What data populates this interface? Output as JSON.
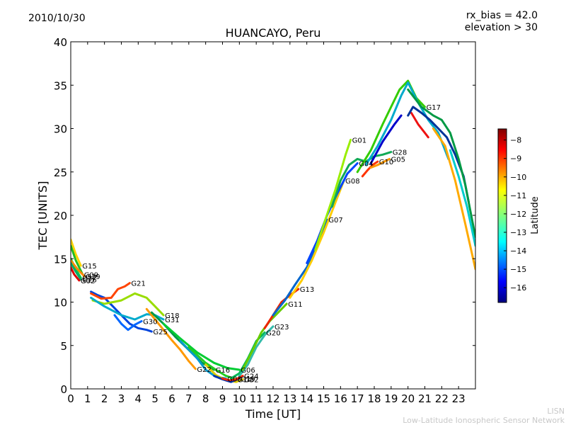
{
  "header": {
    "date": "2010/10/30",
    "rx_bias": "rx_bias = 42.0",
    "elevation": "elevation > 30"
  },
  "footer": {
    "line1": "LISN",
    "line2": "Low-Latitude Ionospheric Sensor Network"
  },
  "chart_data": {
    "type": "line",
    "title": "HUANCAYO, Peru",
    "xlabel": "Time [UT]",
    "ylabel": "TEC [UNITS]",
    "xlim": [
      0,
      24
    ],
    "ylim": [
      0,
      40
    ],
    "xticks": [
      0,
      1,
      2,
      3,
      4,
      5,
      6,
      7,
      8,
      9,
      10,
      11,
      12,
      13,
      14,
      15,
      16,
      17,
      18,
      19,
      20,
      21,
      22,
      23
    ],
    "yticks": [
      0,
      5,
      10,
      15,
      20,
      25,
      30,
      35,
      40
    ],
    "grid": false,
    "colorbar": {
      "label": "Latitude",
      "range": [
        -16.8,
        -7.4
      ],
      "ticks": [
        -8,
        -9,
        -10,
        -11,
        -12,
        -13,
        -14,
        -15,
        -16
      ],
      "colormap": [
        "#00007f",
        "#0000ff",
        "#007fff",
        "#00ffff",
        "#7fff7f",
        "#ffff00",
        "#ff7f00",
        "#ff0000",
        "#7f0000"
      ]
    },
    "series": [
      {
        "name": "G15",
        "color": "#ffd400",
        "x": [
          0.0,
          0.3,
          0.6
        ],
        "y": [
          17.2,
          15.5,
          14.2
        ]
      },
      {
        "name": "G09",
        "color": "#22bb22",
        "x": [
          0.0,
          0.3,
          0.7
        ],
        "y": [
          16.5,
          14.8,
          13.2
        ]
      },
      {
        "name": "G27",
        "color": "#11cc44",
        "x": [
          0.0,
          0.3,
          0.6
        ],
        "y": [
          15.0,
          13.8,
          12.8
        ]
      },
      {
        "name": "G29",
        "color": "#ff8800",
        "x": [
          0.0,
          0.4,
          0.8
        ],
        "y": [
          14.8,
          13.8,
          13.0
        ]
      },
      {
        "name": "G26",
        "color": "#00aa66",
        "x": [
          0.0,
          0.3,
          0.6
        ],
        "y": [
          14.5,
          13.5,
          12.6
        ]
      },
      {
        "name": "G02",
        "color": "#dd0000",
        "x": [
          0.0,
          0.2,
          0.5
        ],
        "y": [
          14.0,
          13.2,
          12.5
        ]
      },
      {
        "name": "G25",
        "color": "#0044dd",
        "x": [
          1.2,
          1.6,
          2.0,
          2.5,
          3.0,
          3.5,
          4.0,
          4.5,
          4.8
        ],
        "y": [
          11.2,
          10.8,
          10.5,
          9.5,
          8.5,
          7.5,
          7.0,
          6.8,
          6.6
        ]
      },
      {
        "name": "G21",
        "color": "#ff4400",
        "x": [
          1.2,
          1.8,
          2.4,
          2.8,
          3.2,
          3.5
        ],
        "y": [
          11.0,
          10.4,
          10.5,
          11.5,
          11.8,
          12.2
        ]
      },
      {
        "name": "G18",
        "color": "#99dd00",
        "x": [
          1.3,
          2.0,
          3.0,
          3.8,
          4.5,
          5.0,
          5.5
        ],
        "y": [
          10.2,
          9.8,
          10.2,
          11.0,
          10.5,
          9.5,
          8.5
        ]
      },
      {
        "name": "G30",
        "color": "#0066ff",
        "x": [
          2.6,
          3.0,
          3.4,
          3.8,
          4.2
        ],
        "y": [
          8.5,
          7.5,
          6.8,
          7.4,
          7.8
        ]
      },
      {
        "name": "G31",
        "color": "#00aacc",
        "x": [
          1.2,
          2.0,
          3.0,
          3.8,
          4.5,
          5.0,
          5.5
        ],
        "y": [
          10.5,
          9.5,
          8.5,
          8.0,
          8.6,
          8.5,
          8.0
        ]
      },
      {
        "name": "G22",
        "color": "#ff9900",
        "x": [
          4.5,
          5.0,
          5.5,
          6.0,
          6.5,
          7.0,
          7.4
        ],
        "y": [
          9.2,
          8.0,
          6.8,
          5.6,
          4.5,
          3.2,
          2.3
        ]
      },
      {
        "name": "G16",
        "color": "#009944",
        "x": [
          4.8,
          5.5,
          6.2,
          7.0,
          7.8,
          8.5
        ],
        "y": [
          8.8,
          7.5,
          6.0,
          4.5,
          3.0,
          2.2
        ]
      },
      {
        "name": "G06",
        "color": "#00cc33",
        "x": [
          5.5,
          6.5,
          7.5,
          8.5,
          9.3,
          10.0
        ],
        "y": [
          7.5,
          5.8,
          4.2,
          3.0,
          2.4,
          2.2
        ]
      },
      {
        "name": "G03",
        "color": "#0099cc",
        "x": [
          6.5,
          7.5,
          8.0,
          8.6,
          9.2
        ],
        "y": [
          5.5,
          3.5,
          2.2,
          1.4,
          1.2
        ]
      },
      {
        "name": "G14",
        "color": "#22cc22",
        "x": [
          7.0,
          8.0,
          8.6,
          9.2,
          9.8
        ],
        "y": [
          4.8,
          3.0,
          2.2,
          1.5,
          1.1
        ]
      },
      {
        "name": "G32",
        "color": "#ddcc00",
        "x": [
          8.0,
          8.6,
          9.2,
          9.8,
          10.2
        ],
        "y": [
          2.8,
          1.6,
          1.0,
          0.8,
          1.1
        ]
      },
      {
        "name": "G19",
        "color": "#0033aa",
        "x": [
          8.5,
          9.0,
          9.5,
          10.0
        ],
        "y": [
          1.5,
          1.1,
          0.8,
          1.2
        ]
      },
      {
        "name": "G24",
        "color": "#ff2200",
        "x": [
          9.0,
          9.4,
          9.8,
          10.2
        ],
        "y": [
          1.2,
          1.0,
          1.1,
          1.5
        ]
      },
      {
        "name": "G20",
        "color": "#00bb55",
        "x": [
          9.5,
          10.0,
          10.5,
          11.0,
          11.5
        ],
        "y": [
          1.2,
          1.8,
          3.5,
          5.5,
          6.5
        ]
      },
      {
        "name": "G23",
        "color": "#33bbaa",
        "x": [
          10.0,
          10.5,
          11.0,
          11.5,
          12.0
        ],
        "y": [
          1.5,
          2.8,
          4.8,
          6.2,
          7.2
        ]
      },
      {
        "name": "G11",
        "color": "#66cc00",
        "x": [
          10.2,
          10.8,
          11.3,
          11.8,
          12.3,
          12.8
        ],
        "y": [
          2.2,
          4.5,
          6.5,
          7.8,
          8.8,
          9.8
        ]
      },
      {
        "name": "G13",
        "color": "#ee2200",
        "x": [
          11.5,
          12.0,
          12.5,
          13.0,
          13.5
        ],
        "y": [
          7.0,
          8.5,
          10.0,
          10.8,
          11.5
        ]
      },
      {
        "name": "G07",
        "color": "#0066cc",
        "x": [
          12.0,
          12.7,
          13.3,
          14.0,
          14.6,
          15.2
        ],
        "y": [
          8.5,
          10.2,
          12.0,
          14.0,
          16.5,
          19.5
        ]
      },
      {
        "name": "G08",
        "color": "#ffcc00",
        "x": [
          13.0,
          13.7,
          14.3,
          15.0,
          15.6,
          16.2
        ],
        "y": [
          10.5,
          12.5,
          14.8,
          18.0,
          21.0,
          24.0
        ]
      },
      {
        "name": "G04",
        "color": "#0044ff",
        "x": [
          14.0,
          14.6,
          15.2,
          15.8,
          16.4,
          17.0
        ],
        "y": [
          14.5,
          17.0,
          20.0,
          22.5,
          24.8,
          26.0
        ]
      },
      {
        "name": "G01",
        "color": "#99ee00",
        "x": [
          14.5,
          15.1,
          15.7,
          16.3,
          16.6
        ],
        "y": [
          16.0,
          19.5,
          23.0,
          27.0,
          28.7
        ]
      },
      {
        "name": "G10",
        "color": "#ff3300",
        "x": [
          17.3,
          17.6,
          17.9,
          18.2
        ],
        "y": [
          24.5,
          25.2,
          25.8,
          26.2
        ]
      },
      {
        "name": "G28",
        "color": "#11aa55",
        "x": [
          15.5,
          16.0,
          16.5,
          17.0,
          17.5,
          18.0,
          18.5,
          19.0
        ],
        "y": [
          21.0,
          24.0,
          25.8,
          26.5,
          26.2,
          26.8,
          27.0,
          27.3
        ]
      },
      {
        "name": "G05",
        "color": "#ff9900",
        "x": [
          17.8,
          18.2,
          18.6,
          18.9
        ],
        "y": [
          25.5,
          25.8,
          26.2,
          26.5
        ]
      },
      {
        "name": "G17",
        "color": "#33cc00",
        "x": [
          17.0,
          17.8,
          18.5,
          19.0,
          19.5,
          20.0,
          20.5,
          21.0
        ],
        "y": [
          25.0,
          27.5,
          30.5,
          32.5,
          34.5,
          35.5,
          33.5,
          32.5
        ]
      },
      {
        "name": "",
        "color": "#00aacc",
        "x": [
          17.5,
          18.2,
          19.0,
          19.6,
          20.0,
          20.6,
          21.2,
          21.8,
          22.4
        ],
        "y": [
          25.8,
          28.0,
          31.0,
          33.8,
          35.3,
          33.0,
          31.0,
          29.5,
          26.5
        ]
      },
      {
        "name": "",
        "color": "#0000cc",
        "x": [
          17.8,
          18.5,
          19.2,
          19.6
        ],
        "y": [
          26.0,
          28.5,
          30.5,
          31.5
        ]
      },
      {
        "name": "",
        "color": "#ee1111",
        "x": [
          20.2,
          20.6,
          21.0,
          21.2
        ],
        "y": [
          31.8,
          30.5,
          29.5,
          29.0
        ]
      },
      {
        "name": "",
        "color": "#003399",
        "x": [
          20.0,
          20.3,
          20.8,
          21.3,
          21.8,
          22.3,
          22.8,
          23.3,
          23.6
        ],
        "y": [
          31.5,
          32.5,
          31.8,
          31.0,
          30.0,
          29.0,
          27.0,
          24.5,
          21.5
        ]
      },
      {
        "name": "",
        "color": "#009944",
        "x": [
          20.0,
          20.8,
          21.5,
          22.0,
          22.5,
          23.0,
          23.4,
          24.0
        ],
        "y": [
          34.5,
          32.5,
          31.5,
          31.0,
          29.5,
          26.5,
          23.5,
          17.5
        ]
      },
      {
        "name": "",
        "color": "#ffaa00",
        "x": [
          21.5,
          22.2,
          22.8,
          23.4,
          24.0
        ],
        "y": [
          30.0,
          28.0,
          24.0,
          19.0,
          13.8
        ]
      },
      {
        "name": "",
        "color": "#00cccc",
        "x": [
          22.5,
          23.0,
          23.5,
          24.0
        ],
        "y": [
          27.5,
          24.5,
          21.0,
          16.5
        ]
      }
    ]
  }
}
